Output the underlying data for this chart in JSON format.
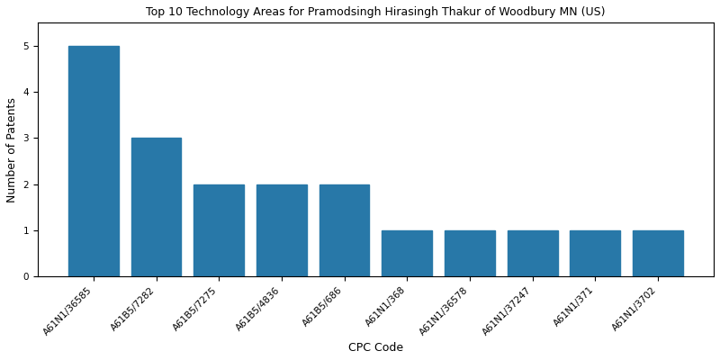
{
  "title": "Top 10 Technology Areas for Pramodsingh Hirasingh Thakur of Woodbury MN (US)",
  "xlabel": "CPC Code",
  "ylabel": "Number of Patents",
  "categories": [
    "A61N1/36585",
    "A61B5/7282",
    "A61B5/7275",
    "A61B5/4836",
    "A61B5/686",
    "A61N1/368",
    "A61N1/36578",
    "A61N1/37247",
    "A61N1/371",
    "A61N1/3702"
  ],
  "values": [
    5,
    3,
    2,
    2,
    2,
    1,
    1,
    1,
    1,
    1
  ],
  "bar_color": "#2878a8",
  "ylim": [
    0,
    5.5
  ],
  "yticks": [
    0,
    1,
    2,
    3,
    4,
    5
  ],
  "figsize": [
    8,
    4
  ],
  "dpi": 100,
  "title_fontsize": 9,
  "axis_label_fontsize": 9,
  "tick_fontsize": 7.5
}
